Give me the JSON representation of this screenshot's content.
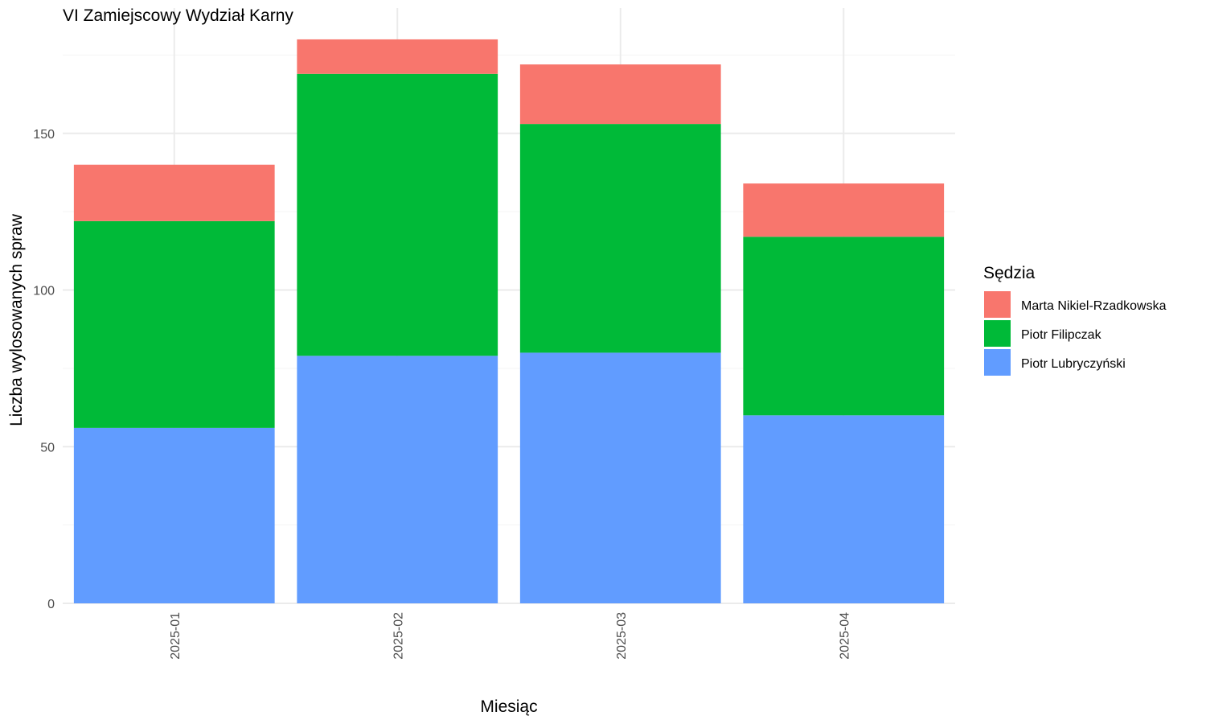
{
  "chart_data": {
    "type": "bar",
    "stacked": true,
    "title": "VI Zamiejscowy Wydział Karny",
    "xlabel": "Miesiąc",
    "ylabel": "Liczba wylosowanych spraw",
    "categories": [
      "2025-01",
      "2025-02",
      "2025-03",
      "2025-04"
    ],
    "ylim": [
      0,
      190
    ],
    "yticks": [
      0,
      50,
      100,
      150
    ],
    "grid": true,
    "legend": {
      "title": "Sędzia",
      "position": "right"
    },
    "series": [
      {
        "name": "Piotr Lubryczyński",
        "color": "#619CFF",
        "values": [
          56,
          79,
          80,
          60
        ]
      },
      {
        "name": "Piotr Filipczak",
        "color": "#00BA38",
        "values": [
          66,
          90,
          73,
          57
        ]
      },
      {
        "name": "Marta Nikiel-Rzadkowska",
        "color": "#F8766D",
        "values": [
          18,
          11,
          19,
          17
        ]
      }
    ],
    "legend_order": [
      "Marta Nikiel-Rzadkowska",
      "Piotr Filipczak",
      "Piotr Lubryczyński"
    ]
  }
}
